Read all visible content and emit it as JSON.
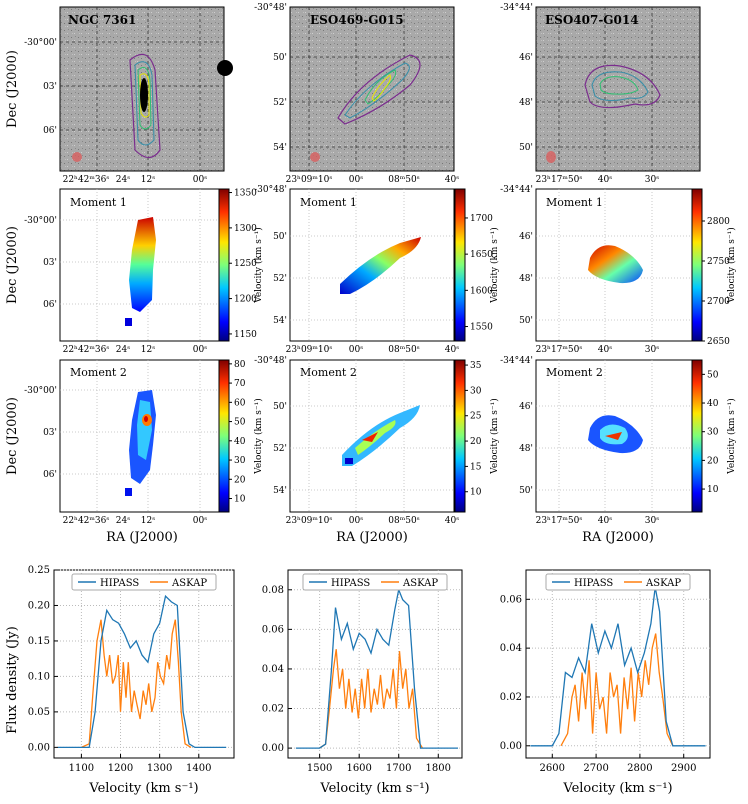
{
  "chart_data": {
    "type": "figure-grid",
    "galaxies": [
      {
        "name": "NGC 7361",
        "ra_ticks": [
          "22h42m36s",
          "24s",
          "12s",
          "00s"
        ],
        "dec_ticks": [
          "-30°00'",
          "03'",
          "06'"
        ],
        "moment1": {
          "title": "Moment 1",
          "cbar_ticks": [
            "1150",
            "1200",
            "1250",
            "1300",
            "1350"
          ],
          "cbar_range": [
            1140,
            1355
          ]
        },
        "moment2": {
          "title": "Moment 2",
          "cbar_ticks": [
            "10",
            "20",
            "30",
            "40",
            "50",
            "60",
            "70",
            "80"
          ],
          "cbar_range": [
            3,
            82
          ]
        }
      },
      {
        "name": "ESO469-G015",
        "ra_ticks": [
          "23h09m10s",
          "00s",
          "08m50s",
          "40s"
        ],
        "dec_ticks": [
          "-30°48'",
          "50'",
          "52'",
          "54'"
        ],
        "moment1": {
          "title": "Moment 1",
          "cbar_ticks": [
            "1550",
            "1600",
            "1650",
            "1700"
          ],
          "cbar_range": [
            1530,
            1740
          ]
        },
        "moment2": {
          "title": "Moment 2",
          "cbar_ticks": [
            "10",
            "15",
            "20",
            "25",
            "30",
            "35"
          ],
          "cbar_range": [
            6,
            36
          ]
        }
      },
      {
        "name": "ESO407-G014",
        "ra_ticks": [
          "23h17m50s",
          "40s",
          "30s"
        ],
        "dec_ticks": [
          "-34°44'",
          "46'",
          "48'",
          "50'"
        ],
        "moment1": {
          "title": "Moment 1",
          "cbar_ticks": [
            "2650",
            "2700",
            "2750",
            "2800"
          ],
          "cbar_range": [
            2650,
            2840
          ]
        },
        "moment2": {
          "title": "Moment 2",
          "cbar_ticks": [
            "10",
            "20",
            "30",
            "40",
            "50"
          ],
          "cbar_range": [
            2,
            55
          ]
        }
      }
    ],
    "map_xlabel": "RA (J2000)",
    "map_ylabel": "Dec (J2000)",
    "cbar_label": "Velocity (km s⁻¹)",
    "spectra": {
      "type": "line",
      "xlabel": "Velocity (km s⁻¹)",
      "ylabel": "Flux density (Jy)",
      "legend": [
        "HIPASS",
        "ASKAP"
      ],
      "series_colors": [
        "#1f77b4",
        "#ff7f0e"
      ],
      "panels": [
        {
          "galaxy": "NGC 7361",
          "xlim": [
            1030,
            1490
          ],
          "ylim": [
            -0.015,
            0.25
          ],
          "x_ticks": [
            "1100",
            "1200",
            "1300",
            "1400"
          ],
          "y_ticks": [
            "0.00",
            "0.05",
            "0.10",
            "0.15",
            "0.20",
            "0.25"
          ],
          "hipass": {
            "x": [
              1040,
              1100,
              1120,
              1135,
              1150,
              1165,
              1180,
              1195,
              1210,
              1225,
              1240,
              1255,
              1270,
              1285,
              1300,
              1315,
              1330,
              1345,
              1360,
              1375,
              1390,
              1420,
              1470
            ],
            "y": [
              0,
              0,
              0,
              0.05,
              0.15,
              0.193,
              0.18,
              0.175,
              0.16,
              0.14,
              0.15,
              0.13,
              0.12,
              0.16,
              0.175,
              0.213,
              0.205,
              0.2,
              0.05,
              0.005,
              0,
              0,
              0
            ]
          },
          "askap": {
            "x": [
              1100,
              1120,
              1130,
              1140,
              1150,
              1158,
              1165,
              1172,
              1180,
              1187,
              1194,
              1200,
              1207,
              1214,
              1220,
              1228,
              1235,
              1242,
              1250,
              1258,
              1265,
              1272,
              1280,
              1288,
              1295,
              1302,
              1310,
              1318,
              1325,
              1332,
              1340,
              1348,
              1355,
              1365,
              1380
            ],
            "y": [
              0,
              0.005,
              0.08,
              0.15,
              0.18,
              0.13,
              0.1,
              0.13,
              0.09,
              0.1,
              0.13,
              0.05,
              0.12,
              0.07,
              0.12,
              0.05,
              0.08,
              0.06,
              0.04,
              0.08,
              0.06,
              0.09,
              0.05,
              0.07,
              0.12,
              0.1,
              0.09,
              0.13,
              0.11,
              0.16,
              0.18,
              0.12,
              0.05,
              0.005,
              0
            ]
          }
        },
        {
          "galaxy": "ESO469-G015",
          "xlim": [
            1420,
            1860
          ],
          "ylim": [
            -0.005,
            0.09
          ],
          "x_ticks": [
            "1500",
            "1600",
            "1700",
            "1800"
          ],
          "y_ticks": [
            "0.00",
            "0.02",
            "0.04",
            "0.06",
            "0.08"
          ],
          "hipass": {
            "x": [
              1440,
              1500,
              1515,
              1530,
              1540,
              1555,
              1570,
              1585,
              1600,
              1615,
              1630,
              1645,
              1660,
              1675,
              1690,
              1700,
              1710,
              1725,
              1740,
              1755,
              1770,
              1850
            ],
            "y": [
              0,
              0,
              0.002,
              0.04,
              0.071,
              0.055,
              0.063,
              0.05,
              0.058,
              0.055,
              0.048,
              0.06,
              0.055,
              0.052,
              0.07,
              0.08,
              0.075,
              0.072,
              0.03,
              0,
              0,
              0
            ]
          },
          "askap": {
            "x": [
              1500,
              1515,
              1525,
              1535,
              1542,
              1550,
              1558,
              1566,
              1574,
              1582,
              1590,
              1598,
              1606,
              1614,
              1622,
              1630,
              1638,
              1646,
              1654,
              1662,
              1670,
              1678,
              1686,
              1694,
              1702,
              1710,
              1718,
              1726,
              1735,
              1745,
              1760
            ],
            "y": [
              0,
              0.002,
              0.02,
              0.04,
              0.05,
              0.03,
              0.04,
              0.02,
              0.035,
              0.018,
              0.03,
              0.015,
              0.035,
              0.02,
              0.04,
              0.018,
              0.03,
              0.022,
              0.037,
              0.02,
              0.03,
              0.025,
              0.04,
              0.02,
              0.049,
              0.03,
              0.04,
              0.02,
              0.03,
              0.005,
              0
            ]
          }
        },
        {
          "galaxy": "ESO407-G014",
          "xlim": [
            2540,
            2960
          ],
          "ylim": [
            -0.005,
            0.072
          ],
          "x_ticks": [
            "2600",
            "2700",
            "2800",
            "2900"
          ],
          "y_ticks": [
            "0.00",
            "0.02",
            "0.04",
            "0.06"
          ],
          "hipass": {
            "x": [
              2550,
              2600,
              2615,
              2630,
              2645,
              2660,
              2675,
              2690,
              2705,
              2720,
              2735,
              2750,
              2765,
              2780,
              2795,
              2810,
              2825,
              2835,
              2845,
              2860,
              2875,
              2890,
              2950
            ],
            "y": [
              0,
              0,
              0.005,
              0.03,
              0.028,
              0.036,
              0.03,
              0.05,
              0.038,
              0.047,
              0.04,
              0.05,
              0.033,
              0.04,
              0.03,
              0.038,
              0.05,
              0.065,
              0.055,
              0.01,
              0,
              0,
              0
            ]
          },
          "askap": {
            "x": [
              2620,
              2635,
              2645,
              2652,
              2660,
              2668,
              2676,
              2684,
              2692,
              2700,
              2708,
              2716,
              2724,
              2732,
              2740,
              2748,
              2756,
              2764,
              2772,
              2780,
              2788,
              2796,
              2804,
              2812,
              2820,
              2828,
              2836,
              2844,
              2852,
              2862,
              2875
            ],
            "y": [
              0,
              0.005,
              0.02,
              0.025,
              0.01,
              0.03,
              0.015,
              0.035,
              0.005,
              0.03,
              0.015,
              0.02,
              0.005,
              0.03,
              0.02,
              0.025,
              0.005,
              0.028,
              0.015,
              0.032,
              0.01,
              0.03,
              0.02,
              0.035,
              0.025,
              0.04,
              0.046,
              0.03,
              0.02,
              0.005,
              0
            ]
          }
        }
      ]
    }
  }
}
